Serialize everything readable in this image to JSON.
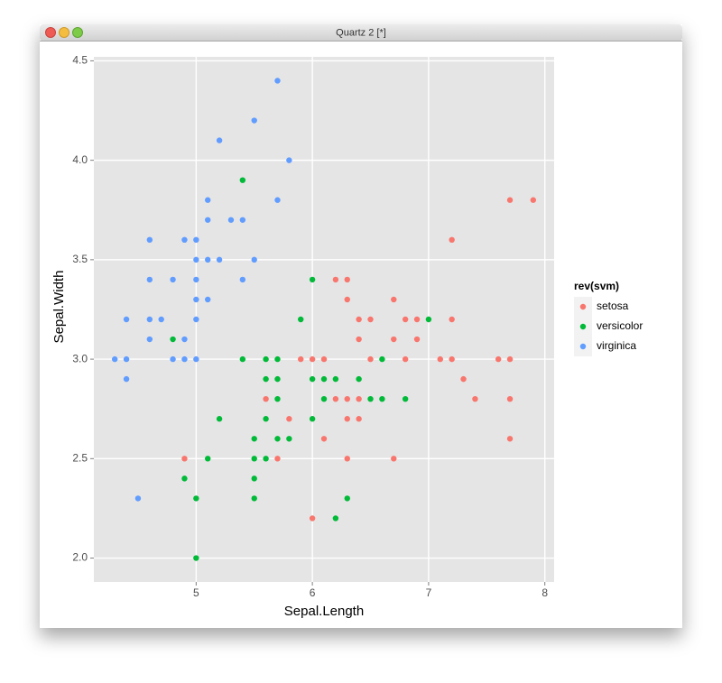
{
  "window": {
    "title": "Quartz 2 [*]"
  },
  "chart_data": {
    "type": "scatter",
    "x_label": "Sepal.Length",
    "y_label": "Sepal.Width",
    "legend_title": "rev(svm)",
    "legend_position": "right",
    "grid": true,
    "xlim": [
      4.12,
      8.08
    ],
    "ylim": [
      1.88,
      4.52
    ],
    "xticks": [
      5,
      6,
      7,
      8
    ],
    "yticks": [
      {
        "value": 2,
        "label": "2.0"
      },
      {
        "value": 2.5,
        "label": "2.5"
      },
      {
        "value": 3,
        "label": "3.0"
      },
      {
        "value": 3.5,
        "label": "3.5"
      },
      {
        "value": 4,
        "label": "4.0"
      },
      {
        "value": 4.5,
        "label": "4.5"
      }
    ],
    "series": [
      {
        "name": "setosa",
        "color": "#F8766D",
        "x": [
          7.7,
          7.9,
          7.2,
          6.2,
          6.3,
          6.3,
          6.7,
          6.4,
          6.5,
          6.8,
          6.9,
          7.2,
          6.4,
          6.7,
          6.9,
          5.9,
          6.0,
          6.1,
          6.5,
          6.8,
          7.1,
          7.2,
          7.6,
          7.7,
          7.3,
          5.6,
          6.2,
          6.3,
          6.4,
          7.4,
          7.7,
          5.8,
          6.3,
          6.4,
          6.1,
          7.7,
          4.9,
          5.7,
          6.3,
          6.7,
          6.0
        ],
        "values": [
          3.8,
          3.8,
          3.6,
          3.4,
          3.4,
          3.3,
          3.3,
          3.2,
          3.2,
          3.2,
          3.2,
          3.2,
          3.1,
          3.1,
          3.1,
          3.0,
          3.0,
          3.0,
          3.0,
          3.0,
          3.0,
          3.0,
          3.0,
          3.0,
          2.9,
          2.8,
          2.8,
          2.8,
          2.8,
          2.8,
          2.8,
          2.7,
          2.7,
          2.7,
          2.6,
          2.6,
          2.5,
          2.5,
          2.5,
          2.5,
          2.2
        ]
      },
      {
        "name": "versicolor",
        "color": "#00BA38",
        "x": [
          5.4,
          6.0,
          5.9,
          7.0,
          4.8,
          5.4,
          5.6,
          5.7,
          6.6,
          5.6,
          5.7,
          6.0,
          6.1,
          6.2,
          6.4,
          5.7,
          6.1,
          6.5,
          6.6,
          6.8,
          5.2,
          5.6,
          6.0,
          5.5,
          5.7,
          5.8,
          5.1,
          5.5,
          5.6,
          4.9,
          5.5,
          5.0,
          5.5,
          6.3,
          6.2,
          5.0
        ],
        "values": [
          3.9,
          3.4,
          3.2,
          3.2,
          3.1,
          3.0,
          3.0,
          3.0,
          3.0,
          2.9,
          2.9,
          2.9,
          2.9,
          2.9,
          2.9,
          2.8,
          2.8,
          2.8,
          2.8,
          2.8,
          2.7,
          2.7,
          2.7,
          2.6,
          2.6,
          2.6,
          2.5,
          2.5,
          2.5,
          2.4,
          2.4,
          2.3,
          2.3,
          2.3,
          2.2,
          2.0
        ]
      },
      {
        "name": "virginica",
        "color": "#619CFF",
        "x": [
          5.7,
          5.5,
          5.2,
          5.8,
          5.1,
          5.7,
          5.1,
          5.3,
          5.4,
          4.6,
          4.9,
          5.0,
          5.0,
          5.1,
          5.2,
          5.5,
          4.6,
          4.8,
          5.0,
          5.4,
          5.0,
          5.1,
          4.4,
          4.6,
          4.7,
          5.0,
          4.6,
          4.9,
          4.3,
          4.4,
          4.8,
          4.9,
          5.0,
          4.4,
          4.5
        ],
        "values": [
          4.4,
          4.2,
          4.1,
          4.0,
          3.8,
          3.8,
          3.7,
          3.7,
          3.7,
          3.6,
          3.6,
          3.6,
          3.5,
          3.5,
          3.5,
          3.5,
          3.4,
          3.4,
          3.4,
          3.4,
          3.3,
          3.3,
          3.2,
          3.2,
          3.2,
          3.2,
          3.1,
          3.1,
          3.0,
          3.0,
          3.0,
          3.0,
          3.0,
          2.9,
          2.3
        ]
      }
    ]
  }
}
